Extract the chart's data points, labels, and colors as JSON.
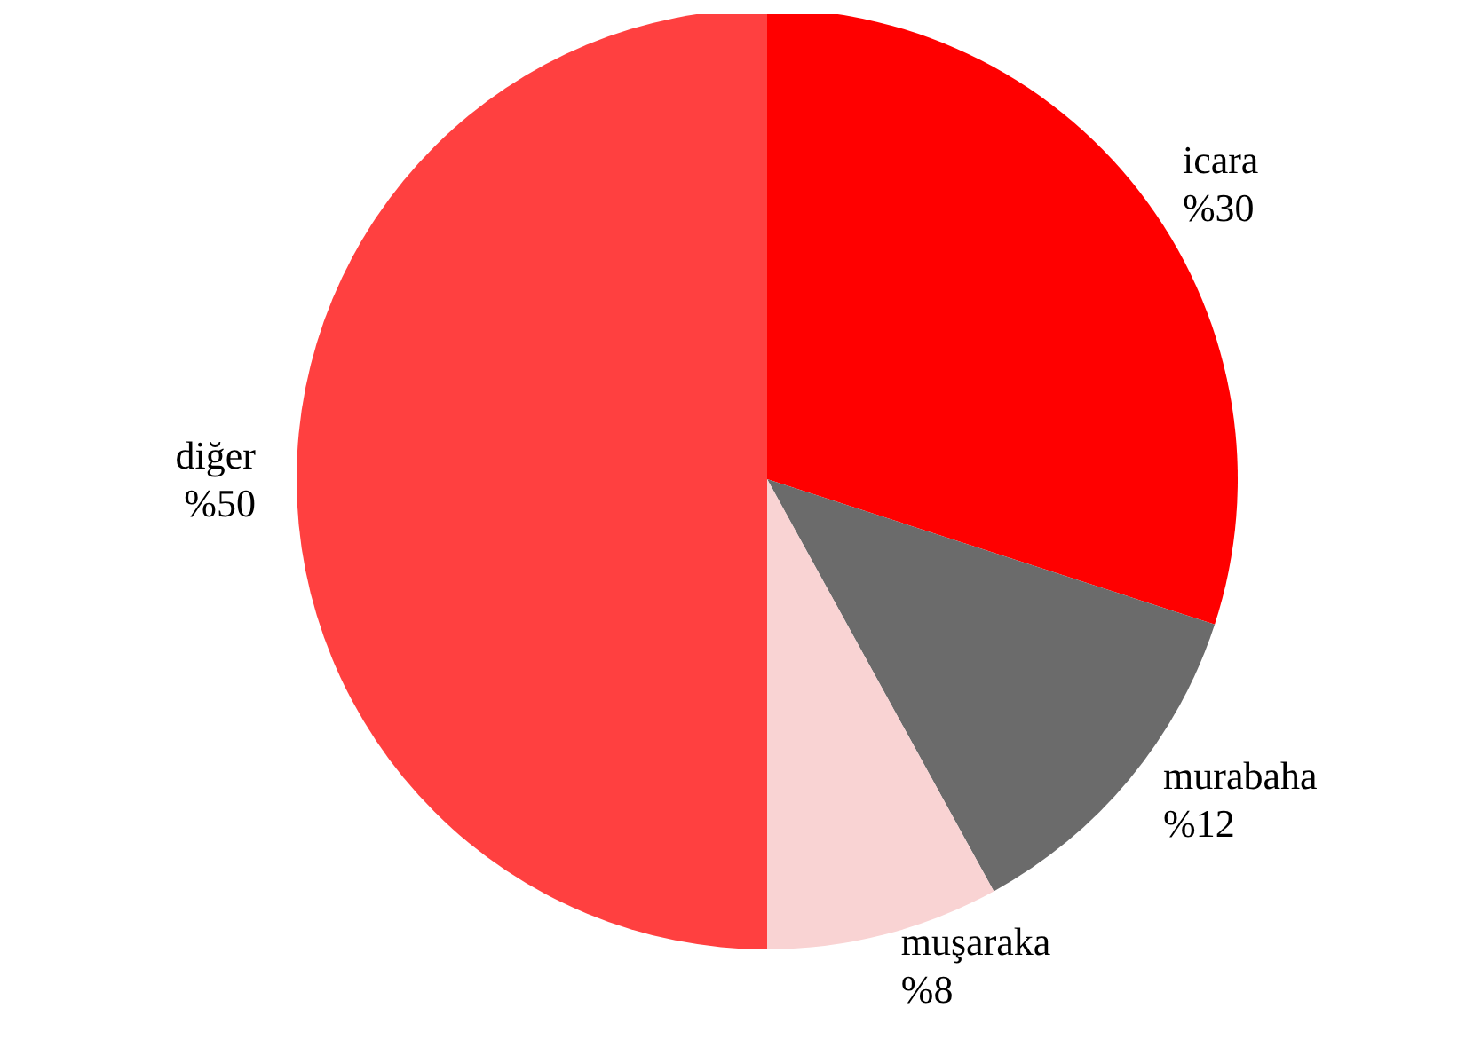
{
  "chart_data": {
    "type": "pie",
    "categories": [
      "icara",
      "murabaha",
      "muşaraka",
      "diğer"
    ],
    "values": [
      30,
      12,
      8,
      50
    ],
    "colors": [
      "#ff0000",
      "#6b6b6b",
      "#f9d3d3",
      "#ff4040"
    ],
    "value_labels": [
      "%30",
      "%12",
      "%8",
      "%50"
    ],
    "legend": false
  }
}
